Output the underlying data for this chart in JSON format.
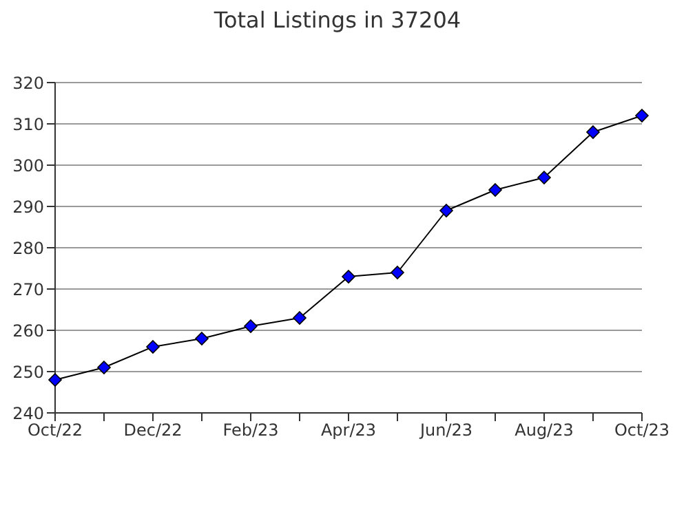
{
  "chart_data": {
    "type": "line",
    "title": "Total Listings in 37204",
    "categories": [
      "Oct/22",
      null,
      "Dec/22",
      null,
      "Feb/23",
      null,
      "Apr/23",
      null,
      "Jun/23",
      null,
      "Aug/23",
      null,
      "Oct/23"
    ],
    "series": [
      {
        "color": "#0000ff",
        "values": [
          248,
          251,
          256,
          258,
          261,
          263,
          273,
          274,
          289,
          294,
          297,
          308,
          312
        ]
      }
    ],
    "ylim": [
      240,
      320
    ],
    "yticks": [
      240,
      250,
      260,
      270,
      280,
      290,
      300,
      310,
      320
    ],
    "grid": "y",
    "marker": "diamond",
    "line_style": "solid"
  }
}
